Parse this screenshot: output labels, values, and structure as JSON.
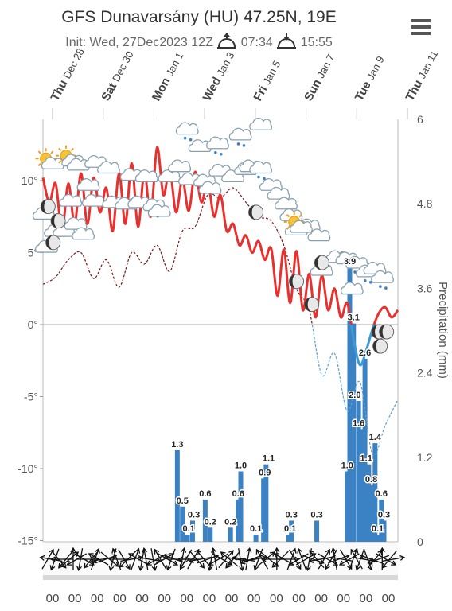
{
  "header": {
    "title": "GFS Dunavarsány (HU) 47.25N, 19E",
    "init_text": "Init: Wed, 27Dec2023 12Z",
    "sunrise": "07:34",
    "sunset": "15:55",
    "sunrise_icon": "sunrise-icon",
    "sunset_icon": "sunset-icon",
    "menu_icon": "hamburger-menu-icon"
  },
  "chart_data": {
    "type": "line",
    "date_labels": [
      {
        "day": "Thu",
        "date": "Dec 28"
      },
      {
        "day": "Sat",
        "date": "Dec 30"
      },
      {
        "day": "Mon",
        "date": "Jan 1"
      },
      {
        "day": "Wed",
        "date": "Jan 3"
      },
      {
        "day": "Fri",
        "date": "Jan 5"
      },
      {
        "day": "Sun",
        "date": "Jan 7"
      },
      {
        "day": "Tue",
        "date": "Jan 9"
      },
      {
        "day": "Thu",
        "date": "Jan 11"
      }
    ],
    "y_left": {
      "ticks": [
        "10°",
        "5°",
        "0°",
        "-5°",
        "-10°",
        "-15°"
      ],
      "range": [
        -15,
        15
      ]
    },
    "y_right": {
      "label": "Precipitation (mm)",
      "ticks": [
        "6",
        "4.8",
        "3.6",
        "2.4",
        "1.2",
        "0"
      ],
      "range": [
        0,
        6
      ]
    },
    "hour_labels": [
      "00",
      "00",
      "00",
      "00",
      "00",
      "00",
      "00",
      "00",
      "00",
      "00",
      "00",
      "00",
      "00",
      "00",
      "00",
      "00"
    ],
    "series": [
      {
        "key": "temperature_above_zero",
        "color": "#e8312f",
        "days": [
          0,
          0.25,
          0.5,
          0.75,
          1,
          1.25,
          1.5,
          1.75,
          2,
          2.25,
          2.5,
          2.75,
          3,
          3.25,
          3.5,
          3.75,
          4,
          4.25,
          4.5,
          4.75,
          5,
          5.25,
          5.5,
          5.75,
          6,
          6.25,
          6.5,
          6.75,
          7,
          7.25,
          7.5,
          7.75,
          8,
          8.25,
          8.5,
          8.75,
          9,
          9.25,
          9.5,
          9.75,
          10,
          10.25,
          10.5,
          10.75,
          11,
          11.25,
          11.5,
          11.75,
          12,
          12.25,
          12.5,
          12.75,
          13,
          13.25,
          13.5,
          13.75,
          14
        ],
        "values": [
          10.2,
          8.5,
          9.8,
          6.5,
          9.8,
          7,
          10.5,
          7,
          10.2,
          7.8,
          9.5,
          6.5,
          10.5,
          7,
          11.2,
          6.8,
          10.6,
          7.5,
          12.3,
          9,
          10.8,
          7.8,
          10.1,
          7.9,
          10.6,
          8.5,
          9.9,
          7.5,
          9,
          6.5,
          7,
          5.5,
          6.2,
          5,
          5.8,
          4.5,
          5.3,
          2,
          5.2,
          1.5,
          5.1,
          1,
          3.5,
          0.5,
          3.4,
          1,
          2.5,
          0.5,
          1.5,
          -1,
          -2.8,
          -1.8,
          -0.3,
          0.8,
          1.2,
          0.5,
          1
        ]
      },
      {
        "key": "temperature_below_zero",
        "color": "#3a9ad9",
        "values": "same as above where below 0°"
      },
      {
        "key": "dewpoint",
        "style": "dashed",
        "color": "#7a1a1a",
        "days": [
          0,
          0.5,
          1,
          1.5,
          2,
          2.5,
          3,
          3.5,
          4,
          4.5,
          5,
          5.5,
          6,
          6.5,
          7,
          7.5,
          8,
          8.5,
          9,
          9.5,
          10,
          10.5,
          11,
          11.5,
          12,
          12.5,
          13,
          13.5,
          14
        ],
        "values": [
          2.8,
          3.3,
          4.5,
          5,
          3.2,
          4.5,
          2.6,
          5,
          4.2,
          5.5,
          3.7,
          6.5,
          6.8,
          9,
          8.8,
          9.5,
          8.5,
          7.5,
          7.2,
          5.5,
          2.5,
          1,
          -3.5,
          -2,
          -6,
          -4,
          -9,
          -7,
          -5.2
        ]
      },
      {
        "key": "precipitation",
        "unit": "mm",
        "color": "#3b82c4",
        "bars": [
          [
            5.3,
            1.3
          ],
          [
            5.5,
            0.5
          ],
          [
            5.7,
            0.1
          ],
          [
            5.9,
            0.3
          ],
          [
            6.4,
            0.6
          ],
          [
            6.6,
            0.2
          ],
          [
            7.4,
            0.2
          ],
          [
            7.7,
            0.6
          ],
          [
            7.8,
            1.0
          ],
          [
            8.4,
            0.1
          ],
          [
            8.7,
            0.9
          ],
          [
            8.8,
            1.1
          ],
          [
            9.7,
            0.1
          ],
          [
            9.8,
            0.3
          ],
          [
            10.8,
            0.3
          ],
          [
            12.0,
            1.0
          ],
          [
            12.1,
            3.9
          ],
          [
            12.25,
            3.1
          ],
          [
            12.45,
            2.0
          ],
          [
            12.55,
            1.6
          ],
          [
            12.7,
            2.6
          ],
          [
            12.85,
            1.1
          ],
          [
            12.95,
            0.8
          ],
          [
            13.1,
            1.4
          ],
          [
            13.2,
            0.1
          ],
          [
            13.35,
            0.6
          ],
          [
            13.45,
            0.3
          ]
        ],
        "labels": [
          {
            "text": "1.3",
            "day": 5.3,
            "value": 1.3
          },
          {
            "text": "0.5",
            "day": 5.5,
            "value": 0.5
          },
          {
            "text": "0.3",
            "day": 5.95,
            "value": 0.3
          },
          {
            "text": "0.1",
            "day": 5.75,
            "value": 0.1
          },
          {
            "text": "0.6",
            "day": 6.4,
            "value": 0.6
          },
          {
            "text": "0.2",
            "day": 6.6,
            "value": 0.2
          },
          {
            "text": "0.2",
            "day": 7.4,
            "value": 0.2
          },
          {
            "text": "0.6",
            "day": 7.7,
            "value": 0.6
          },
          {
            "text": "1.0",
            "day": 7.8,
            "value": 1.0
          },
          {
            "text": "0.1",
            "day": 8.4,
            "value": 0.1
          },
          {
            "text": "1.1",
            "day": 8.9,
            "value": 1.1
          },
          {
            "text": "0.9",
            "day": 8.75,
            "value": 0.9
          },
          {
            "text": "0.3",
            "day": 9.8,
            "value": 0.3
          },
          {
            "text": "0.1",
            "day": 9.75,
            "value": 0.1
          },
          {
            "text": "0.3",
            "day": 10.8,
            "value": 0.3
          },
          {
            "text": "1.0",
            "day": 12.0,
            "value": 1.0
          },
          {
            "text": "3.9",
            "day": 12.1,
            "value": 3.9
          },
          {
            "text": "3.1",
            "day": 12.25,
            "value": 3.1
          },
          {
            "text": "2.0",
            "day": 12.3,
            "value": 2.0
          },
          {
            "text": "1.6",
            "day": 12.45,
            "value": 1.6
          },
          {
            "text": "2.6",
            "day": 12.7,
            "value": 2.6
          },
          {
            "text": "1.1",
            "day": 12.75,
            "value": 1.1
          },
          {
            "text": "0.8",
            "day": 12.95,
            "value": 0.8
          },
          {
            "text": "1.4",
            "day": 13.1,
            "value": 1.4
          },
          {
            "text": "0.1",
            "day": 13.2,
            "value": 0.1
          },
          {
            "text": "0.6",
            "day": 13.35,
            "value": 0.6
          },
          {
            "text": "0.3",
            "day": 13.45,
            "value": 0.3
          }
        ]
      }
    ],
    "weather_icons": [
      {
        "day": 0.3,
        "temp": 11.2,
        "type": "sun-cloud-icon"
      },
      {
        "day": 1.1,
        "temp": 11.4,
        "type": "sun-cloud-icon"
      },
      {
        "day": 1.4,
        "temp": 11.0,
        "type": "cloud-icon"
      },
      {
        "day": 2.1,
        "temp": 11.2,
        "type": "cloud-icon"
      },
      {
        "day": 2.6,
        "temp": 10.8,
        "type": "cloud-icon"
      },
      {
        "day": 3.5,
        "temp": 10.3,
        "type": "cloud-icon"
      },
      {
        "day": 4.1,
        "temp": 10.2,
        "type": "cloud-icon"
      },
      {
        "day": 5.7,
        "temp": 13.5,
        "type": "cloud-rain-icon"
      },
      {
        "day": 6.2,
        "temp": 12.3,
        "type": "cloud-icon"
      },
      {
        "day": 6.9,
        "temp": 12.5,
        "type": "cloud-rain-icon"
      },
      {
        "day": 7.8,
        "temp": 13.1,
        "type": "cloud-rain-icon"
      },
      {
        "day": 8.6,
        "temp": 13.8,
        "type": "cloud-icon"
      },
      {
        "day": 1.8,
        "temp": 9.6,
        "type": "cloud-icon"
      },
      {
        "day": 1.1,
        "temp": 8.5,
        "type": "cloud-icon"
      },
      {
        "day": 2.0,
        "temp": 8.5,
        "type": "cloud-icon"
      },
      {
        "day": 2.8,
        "temp": 8.4,
        "type": "cloud-icon"
      },
      {
        "day": 3.3,
        "temp": 8.3,
        "type": "cloud-icon"
      },
      {
        "day": 3.8,
        "temp": 8.4,
        "type": "cloud-icon"
      },
      {
        "day": 4.4,
        "temp": 8.2,
        "type": "cloud-rain-icon"
      },
      {
        "day": 4.6,
        "temp": 7.8,
        "type": "cloud-icon"
      },
      {
        "day": 5.0,
        "temp": 10.2,
        "type": "cloud-icon"
      },
      {
        "day": 5.4,
        "temp": 10.9,
        "type": "cloud-icon"
      },
      {
        "day": 5.8,
        "temp": 10.0,
        "type": "cloud-icon"
      },
      {
        "day": 6.4,
        "temp": 9.9,
        "type": "cloud-icon"
      },
      {
        "day": 6.6,
        "temp": 9.4,
        "type": "cloud-icon"
      },
      {
        "day": 7.0,
        "temp": 10.6,
        "type": "cloud-icon"
      },
      {
        "day": 7.5,
        "temp": 10.2,
        "type": "cloud-icon"
      },
      {
        "day": 8.0,
        "temp": 10.7,
        "type": "cloud-icon"
      },
      {
        "day": 8.2,
        "temp": 10.9,
        "type": "cloud-icon"
      },
      {
        "day": 8.6,
        "temp": 10.8,
        "type": "cloud-rain-icon"
      },
      {
        "day": 9.0,
        "temp": 9.6,
        "type": "cloud-icon"
      },
      {
        "day": 9.3,
        "temp": 9.0,
        "type": "cloud-icon"
      },
      {
        "day": 9.6,
        "temp": 8.3,
        "type": "cloud-icon"
      },
      {
        "day": 9.8,
        "temp": 7.5,
        "type": "cloud-icon"
      },
      {
        "day": 10.0,
        "temp": 6.5,
        "type": "cloud-icon"
      },
      {
        "day": 10.5,
        "temp": 6.8,
        "type": "cloud-icon"
      },
      {
        "day": 10.1,
        "temp": 6.8,
        "type": "sun-cloud-icon"
      },
      {
        "day": 10.9,
        "temp": 6.1,
        "type": "cloud-icon"
      },
      {
        "day": 11.6,
        "temp": 4.6,
        "type": "cloud-icon"
      },
      {
        "day": 12.0,
        "temp": 4.5,
        "type": "cloud-icon"
      },
      {
        "day": 12.4,
        "temp": 4.2,
        "type": "cloud-rain-icon"
      },
      {
        "day": 12.8,
        "temp": 3.6,
        "type": "cloud-rain-icon"
      },
      {
        "day": 13.1,
        "temp": 3.8,
        "type": "cloud-icon"
      },
      {
        "day": 13.4,
        "temp": 3.2,
        "type": "cloud-rain-icon"
      },
      {
        "day": 11.0,
        "temp": 3.7,
        "type": "cloud-icon"
      },
      {
        "day": 12.2,
        "temp": 2.4,
        "type": "cloud-icon"
      },
      {
        "day": 0.05,
        "temp": 7.6,
        "type": "cloud-icon"
      },
      {
        "day": 0.15,
        "temp": 5.3,
        "type": "cloud-icon"
      },
      {
        "day": 0.5,
        "temp": 6.4,
        "type": "cloud-icon"
      },
      {
        "day": 0.85,
        "temp": 6.4,
        "type": "cloud-icon"
      },
      {
        "day": 1.3,
        "temp": 6.9,
        "type": "cloud-icon"
      },
      {
        "day": 1.6,
        "temp": 6.2,
        "type": "cloud-icon"
      }
    ],
    "moon_icons": [
      {
        "day": 0.2,
        "temp": 8.2
      },
      {
        "day": 0.6,
        "temp": 7.2
      },
      {
        "day": 0.4,
        "temp": 5.7
      },
      {
        "day": 8.4,
        "temp": 7.8
      },
      {
        "day": 10.0,
        "temp": 3.0
      },
      {
        "day": 10.6,
        "temp": 1.4
      },
      {
        "day": 11.0,
        "temp": 4.3
      },
      {
        "day": 13.25,
        "temp": -0.5
      },
      {
        "day": 13.3,
        "temp": -1.5
      },
      {
        "day": 13.55,
        "temp": -0.5
      }
    ],
    "wind_arrow_rotations": [
      210,
      100,
      20,
      320,
      90,
      40,
      230,
      180,
      60,
      10,
      300,
      270,
      40,
      200,
      120,
      80,
      250,
      310,
      15,
      160,
      90,
      330,
      45,
      260,
      200,
      120,
      10,
      170,
      280,
      350,
      60,
      150,
      240,
      300,
      20,
      110,
      270,
      190,
      30,
      90,
      210,
      320,
      80,
      140,
      250,
      10,
      170,
      60,
      300,
      220,
      130,
      40,
      280,
      350,
      100,
      190,
      70,
      260,
      20,
      150,
      230,
      310,
      90,
      180,
      45,
      120,
      270,
      200,
      330,
      60,
      160,
      240,
      10,
      290,
      140,
      80,
      210,
      300,
      30,
      170,
      250,
      100,
      330,
      60,
      200,
      150,
      20,
      280,
      340,
      110,
      220,
      70,
      180,
      300,
      40,
      260
    ]
  }
}
